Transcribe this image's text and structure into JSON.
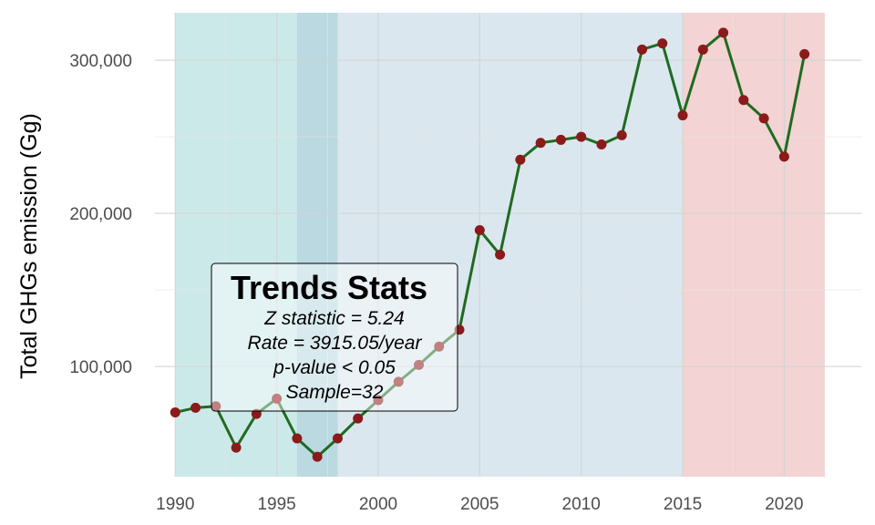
{
  "chart_data": {
    "type": "line",
    "title": "",
    "xlabel": "",
    "ylabel": "Total GHGs emission (Gg)",
    "xlim": [
      1989,
      2023.8
    ],
    "ylim": [
      28000,
      331000
    ],
    "x_ticks": [
      1990,
      1995,
      2000,
      2005,
      2010,
      2015,
      2020
    ],
    "x_tick_labels": [
      "1990",
      "1995",
      "2000",
      "2005",
      "2010",
      "2015",
      "2020"
    ],
    "y_ticks": [
      100000,
      200000,
      300000
    ],
    "y_tick_labels": [
      "100,000",
      "200,000",
      "300,000"
    ],
    "grid": true,
    "series": [
      {
        "name": "Total GHGs emission",
        "x": [
          1990,
          1991,
          1992,
          1993,
          1994,
          1995,
          1996,
          1997,
          1998,
          1999,
          2000,
          2001,
          2002,
          2003,
          2004,
          2005,
          2006,
          2007,
          2008,
          2009,
          2010,
          2011,
          2012,
          2013,
          2014,
          2015,
          2016,
          2017,
          2018,
          2019,
          2020,
          2021
        ],
        "y": [
          70000,
          73000,
          74000,
          47000,
          69000,
          79000,
          53000,
          41000,
          53000,
          66000,
          78000,
          90000,
          101000,
          113000,
          124000,
          189000,
          173000,
          235000,
          246000,
          248000,
          250000,
          245000,
          251000,
          307000,
          311000,
          264000,
          307000,
          318000,
          274000,
          262000,
          237000,
          304000
        ],
        "line_color": "#1f6b1f",
        "marker_color": "#8b1a1a"
      }
    ],
    "shaded_regions": [
      {
        "from": 1990,
        "to": 1998,
        "color": "#8fcfcf",
        "opacity": 0.45
      },
      {
        "from": 1996,
        "to": 2015,
        "color": "#9fbfd6",
        "opacity": 0.38
      },
      {
        "from": 2015,
        "to": 2022,
        "color": "#e5a3a3",
        "opacity": 0.48
      }
    ],
    "annotation_box": {
      "title": "Trends Stats",
      "lines": [
        "Z statistic = 5.24",
        "Rate = 3915.05/year",
        "p-value < 0.05",
        "Sample=32"
      ]
    }
  }
}
